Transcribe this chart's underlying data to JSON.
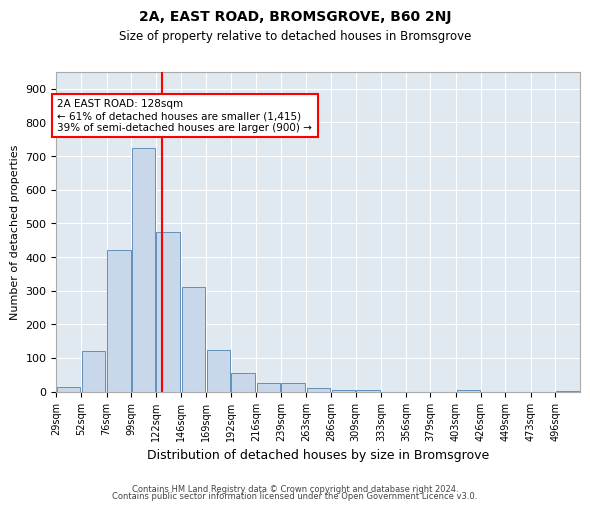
{
  "title": "2A, EAST ROAD, BROMSGROVE, B60 2NJ",
  "subtitle": "Size of property relative to detached houses in Bromsgrove",
  "xlabel": "Distribution of detached houses by size in Bromsgrove",
  "ylabel": "Number of detached properties",
  "bar_color": "#c8d8ea",
  "bar_edge_color": "#6090bb",
  "background_color": "#e0e8f0",
  "red_line_x": 128,
  "annotation_text": "2A EAST ROAD: 128sqm\n← 61% of detached houses are smaller (1,415)\n39% of semi-detached houses are larger (900) →",
  "footer1": "Contains HM Land Registry data © Crown copyright and database right 2024.",
  "footer2": "Contains public sector information licensed under the Open Government Licence v3.0.",
  "bins": [
    29,
    52,
    76,
    99,
    122,
    146,
    169,
    192,
    216,
    239,
    263,
    286,
    309,
    333,
    356,
    379,
    403,
    426,
    449,
    473,
    496
  ],
  "counts": [
    15,
    120,
    420,
    725,
    475,
    310,
    125,
    55,
    25,
    25,
    10,
    5,
    5,
    0,
    0,
    0,
    5,
    0,
    0,
    0,
    2
  ],
  "ylim": [
    0,
    950
  ],
  "yticks": [
    0,
    100,
    200,
    300,
    400,
    500,
    600,
    700,
    800,
    900
  ]
}
